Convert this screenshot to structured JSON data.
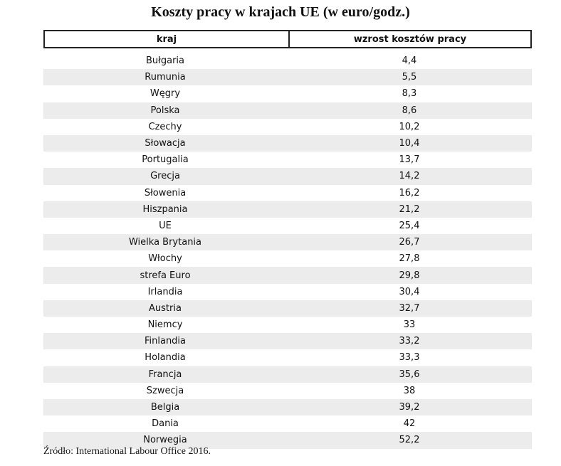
{
  "title": "Koszty pracy w krajach UE (w euro/godz.)",
  "table": {
    "headers": [
      "kraj",
      "wzrost kosztów pracy"
    ],
    "rows": [
      {
        "kraj": "Bułgaria",
        "value": "4,4"
      },
      {
        "kraj": "Rumunia",
        "value": "5,5"
      },
      {
        "kraj": "Węgry",
        "value": "8,3"
      },
      {
        "kraj": "Polska",
        "value": "8,6"
      },
      {
        "kraj": "Czechy",
        "value": "10,2"
      },
      {
        "kraj": "Słowacja",
        "value": "10,4"
      },
      {
        "kraj": "Portugalia",
        "value": "13,7"
      },
      {
        "kraj": "Grecja",
        "value": "14,2"
      },
      {
        "kraj": "Słowenia",
        "value": "16,2"
      },
      {
        "kraj": "Hiszpania",
        "value": "21,2"
      },
      {
        "kraj": "UE",
        "value": "25,4"
      },
      {
        "kraj": "Wielka Brytania",
        "value": "26,7"
      },
      {
        "kraj": "Włochy",
        "value": "27,8"
      },
      {
        "kraj": "strefa Euro",
        "value": "29,8"
      },
      {
        "kraj": "Irlandia",
        "value": "30,4"
      },
      {
        "kraj": "Austria",
        "value": "32,7"
      },
      {
        "kraj": "Niemcy",
        "value": "33"
      },
      {
        "kraj": "Finlandia",
        "value": "33,2"
      },
      {
        "kraj": "Holandia",
        "value": "33,3"
      },
      {
        "kraj": "Francja",
        "value": "35,6"
      },
      {
        "kraj": "Szwecja",
        "value": "38"
      },
      {
        "kraj": "Belgia",
        "value": "39,2"
      },
      {
        "kraj": "Dania",
        "value": "42"
      },
      {
        "kraj": "Norwegia",
        "value": "52,2"
      }
    ]
  },
  "source": "Źródło: International Labour Office 2016."
}
